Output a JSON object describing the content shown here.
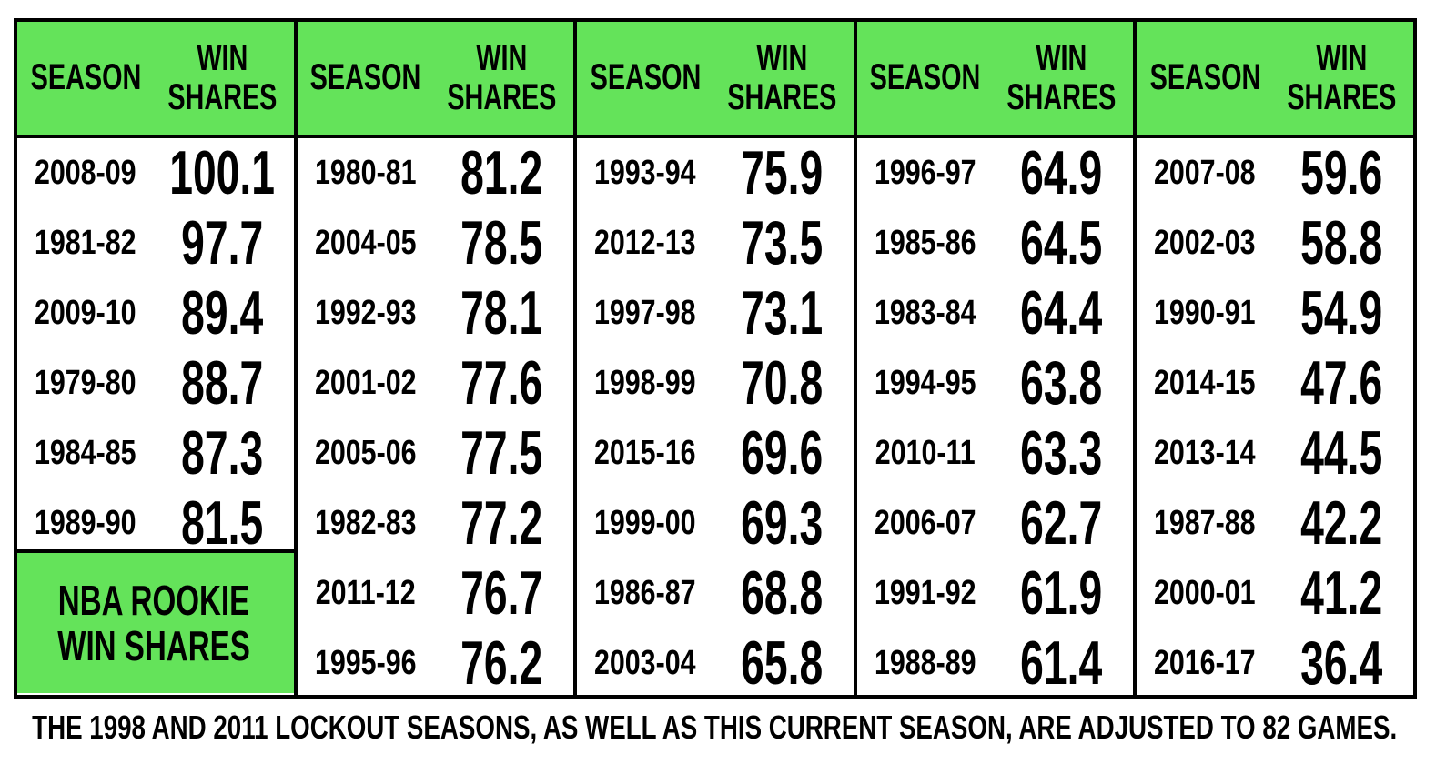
{
  "header": {
    "season": "SEASON",
    "win_shares": "WIN SHARES"
  },
  "groups": [
    {
      "rows": [
        [
          "2008-09",
          "100.1"
        ],
        [
          "1981-82",
          "97.7"
        ],
        [
          "2009-10",
          "89.4"
        ],
        [
          "1979-80",
          "88.7"
        ],
        [
          "1984-85",
          "87.3"
        ],
        [
          "1989-90",
          "81.5"
        ]
      ]
    },
    {
      "rows": [
        [
          "1980-81",
          "81.2"
        ],
        [
          "2004-05",
          "78.5"
        ],
        [
          "1992-93",
          "78.1"
        ],
        [
          "2001-02",
          "77.6"
        ],
        [
          "2005-06",
          "77.5"
        ],
        [
          "1982-83",
          "77.2"
        ],
        [
          "2011-12",
          "76.7"
        ],
        [
          "1995-96",
          "76.2"
        ]
      ]
    },
    {
      "rows": [
        [
          "1993-94",
          "75.9"
        ],
        [
          "2012-13",
          "73.5"
        ],
        [
          "1997-98",
          "73.1"
        ],
        [
          "1998-99",
          "70.8"
        ],
        [
          "2015-16",
          "69.6"
        ],
        [
          "1999-00",
          "69.3"
        ],
        [
          "1986-87",
          "68.8"
        ],
        [
          "2003-04",
          "65.8"
        ]
      ]
    },
    {
      "rows": [
        [
          "1996-97",
          "64.9"
        ],
        [
          "1985-86",
          "64.5"
        ],
        [
          "1983-84",
          "64.4"
        ],
        [
          "1994-95",
          "63.8"
        ],
        [
          "2010-11",
          "63.3"
        ],
        [
          "2006-07",
          "62.7"
        ],
        [
          "1991-92",
          "61.9"
        ],
        [
          "1988-89",
          "61.4"
        ]
      ]
    },
    {
      "rows": [
        [
          "2007-08",
          "59.6"
        ],
        [
          "2002-03",
          "58.8"
        ],
        [
          "1990-91",
          "54.9"
        ],
        [
          "2014-15",
          "47.6"
        ],
        [
          "2013-14",
          "44.5"
        ],
        [
          "1987-88",
          "42.2"
        ],
        [
          "2000-01",
          "41.2"
        ],
        [
          "2016-17",
          "36.4"
        ]
      ]
    }
  ],
  "rookie_box": "NBA ROOKIE WIN SHARES",
  "footnote": "THE 1998 AND 2011 LOCKOUT SEASONS, AS WELL AS THIS CURRENT SEASON, ARE ADJUSTED TO 82 GAMES."
}
